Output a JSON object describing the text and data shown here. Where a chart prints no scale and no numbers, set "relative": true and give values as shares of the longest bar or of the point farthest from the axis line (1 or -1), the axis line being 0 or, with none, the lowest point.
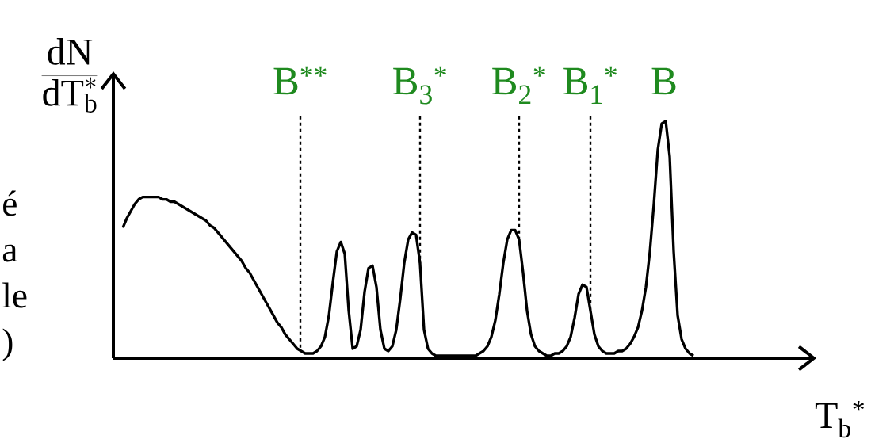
{
  "chart_data": {
    "type": "line",
    "relative": true,
    "color": "#000000",
    "line_style": "solid",
    "xlabel": "T$_{b}$$^{*}$",
    "ylabel": "\\frac{\\mathrm{dN}}{\\mathrm{dT}_{\\mathrm{b}}^{*}}",
    "categories": [
      null,
      null,
      null,
      null,
      null,
      null,
      null,
      null,
      null,
      null,
      null,
      null,
      null,
      null,
      null,
      null,
      null,
      null,
      null,
      null,
      null,
      null,
      null,
      null,
      null,
      null,
      null,
      null,
      null,
      null,
      null,
      null,
      null,
      null,
      null,
      null,
      null,
      null,
      null,
      null,
      null,
      null,
      null,
      null,
      null,
      null,
      null,
      null,
      null,
      null,
      null,
      null,
      null,
      null,
      null,
      null,
      null,
      null,
      null,
      null,
      null,
      null,
      null,
      null,
      null,
      null,
      null,
      null,
      null,
      null,
      null,
      null,
      null,
      null,
      null,
      null,
      null,
      null,
      null,
      null,
      null,
      null,
      null,
      null,
      null,
      null,
      null,
      null,
      null,
      null,
      null,
      null,
      null,
      null,
      null,
      null,
      null,
      null,
      null,
      null,
      null,
      null,
      null,
      null,
      null,
      null,
      null,
      null,
      null,
      null,
      null,
      null,
      null,
      null,
      null,
      null,
      null,
      null,
      null,
      null,
      null,
      null,
      null,
      null,
      null,
      null,
      null,
      null,
      null,
      null,
      null,
      null,
      null,
      null,
      null,
      null,
      null,
      null,
      null,
      null,
      null,
      null,
      null,
      null,
      null
    ],
    "values": [
      0.55,
      0.59,
      0.62,
      0.65,
      0.67,
      0.68,
      0.68,
      0.68,
      0.68,
      0.68,
      0.67,
      0.67,
      0.66,
      0.66,
      0.65,
      0.64,
      0.63,
      0.62,
      0.61,
      0.6,
      0.59,
      0.58,
      0.56,
      0.55,
      0.53,
      0.51,
      0.49,
      0.47,
      0.45,
      0.43,
      0.41,
      0.38,
      0.36,
      0.33,
      0.3,
      0.27,
      0.24,
      0.21,
      0.18,
      0.15,
      0.13,
      0.1,
      0.08,
      0.06,
      0.04,
      0.03,
      0.02,
      0.02,
      0.02,
      0.03,
      0.05,
      0.09,
      0.18,
      0.32,
      0.45,
      0.49,
      0.44,
      0.2,
      0.04,
      0.05,
      0.12,
      0.28,
      0.38,
      0.39,
      0.3,
      0.12,
      0.04,
      0.03,
      0.05,
      0.12,
      0.25,
      0.4,
      0.5,
      0.53,
      0.52,
      0.4,
      0.12,
      0.04,
      0.02,
      0.01,
      0.01,
      0.01,
      0.01,
      0.01,
      0.01,
      0.01,
      0.01,
      0.01,
      0.01,
      0.01,
      0.02,
      0.03,
      0.05,
      0.09,
      0.16,
      0.27,
      0.4,
      0.5,
      0.54,
      0.54,
      0.5,
      0.36,
      0.2,
      0.1,
      0.05,
      0.03,
      0.02,
      0.01,
      0.01,
      0.02,
      0.02,
      0.03,
      0.05,
      0.09,
      0.17,
      0.27,
      0.31,
      0.3,
      0.2,
      0.1,
      0.05,
      0.03,
      0.02,
      0.02,
      0.02,
      0.03,
      0.03,
      0.04,
      0.06,
      0.09,
      0.13,
      0.2,
      0.3,
      0.45,
      0.65,
      0.88,
      0.99,
      1.0,
      0.85,
      0.45,
      0.18,
      0.08,
      0.04,
      0.02,
      0.01
    ],
    "annotations": [
      "B$^{**}$",
      "B$_{3}$$^{*}$",
      "B$_{2}$$^{*}$",
      "B$_{1}$$^{*}$",
      "B",
      "é",
      "a",
      "le",
      ")"
    ]
  }
}
